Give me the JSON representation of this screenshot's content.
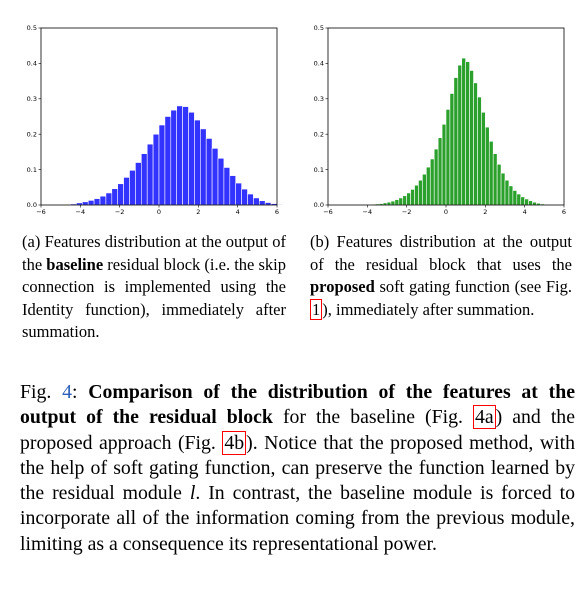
{
  "chart_data": [
    {
      "type": "bar",
      "color": "#3333ff",
      "x_range": [
        -6,
        6
      ],
      "ylim": [
        0,
        0.5
      ],
      "x_ticks": [
        "−6",
        "−4",
        "−2",
        "0",
        "2",
        "4",
        "6"
      ],
      "y_ticks": [
        "0.0",
        "0.1",
        "0.2",
        "0.3",
        "0.4",
        "0.5"
      ],
      "bin_edges_start": -4.5,
      "bin_width": 0.3,
      "values": [
        0.003,
        0.006,
        0.009,
        0.013,
        0.018,
        0.025,
        0.034,
        0.046,
        0.06,
        0.078,
        0.098,
        0.12,
        0.145,
        0.172,
        0.2,
        0.226,
        0.25,
        0.268,
        0.28,
        0.278,
        0.262,
        0.24,
        0.215,
        0.188,
        0.16,
        0.132,
        0.106,
        0.083,
        0.062,
        0.045,
        0.031,
        0.02,
        0.012,
        0.007,
        0.004,
        0.002
      ]
    },
    {
      "type": "bar",
      "color": "#2ca02c",
      "x_range": [
        -6,
        6
      ],
      "ylim": [
        0,
        0.5
      ],
      "x_ticks": [
        "−6",
        "−4",
        "−2",
        "0",
        "2",
        "4",
        "6"
      ],
      "y_ticks": [
        "0.0",
        "0.1",
        "0.2",
        "0.3",
        "0.4",
        "0.5"
      ],
      "bin_edges_start": -4.0,
      "bin_width": 0.2,
      "values": [
        0.001,
        0.002,
        0.003,
        0.004,
        0.006,
        0.008,
        0.011,
        0.015,
        0.02,
        0.026,
        0.034,
        0.044,
        0.056,
        0.07,
        0.087,
        0.107,
        0.13,
        0.158,
        0.19,
        0.228,
        0.27,
        0.315,
        0.36,
        0.395,
        0.415,
        0.405,
        0.38,
        0.345,
        0.305,
        0.262,
        0.22,
        0.18,
        0.145,
        0.115,
        0.09,
        0.07,
        0.054,
        0.041,
        0.031,
        0.023,
        0.017,
        0.012,
        0.008,
        0.005,
        0.003,
        0.002
      ]
    }
  ],
  "captions": {
    "a": {
      "label": "(a)",
      "p1": " Features distribution at the output of the ",
      "bold": "baseline",
      "p2": " residual block (i.e. the skip connection is implemented using the Identity function), immediately after summation."
    },
    "b": {
      "label": "(b)",
      "p1": " Features distribution at the output of the residual block that uses the ",
      "bold": "proposed",
      "p2": " soft gating function (see Fig. ",
      "ref": "1",
      "p3": "), immediately after summation."
    }
  },
  "main_caption": {
    "fig_label": "Fig. ",
    "fig_num": "4",
    "colon": ": ",
    "bold": "Comparison of the distribution of the features at the output of the residual block",
    "t1": " for the baseline (Fig. ",
    "ref_a_num": "4",
    "ref_a_letter": "a",
    "t2": ") and the proposed approach (Fig. ",
    "ref_b_num": "4",
    "ref_b_letter": "b",
    "t3": "). Notice that the proposed method, with the help of soft gating function, can preserve the function learned by the residual module ",
    "var_l": "l",
    "t4": ". In contrast, the baseline module is forced to incorporate all of the information coming from the previous module, limiting as a consequence its representational power."
  }
}
